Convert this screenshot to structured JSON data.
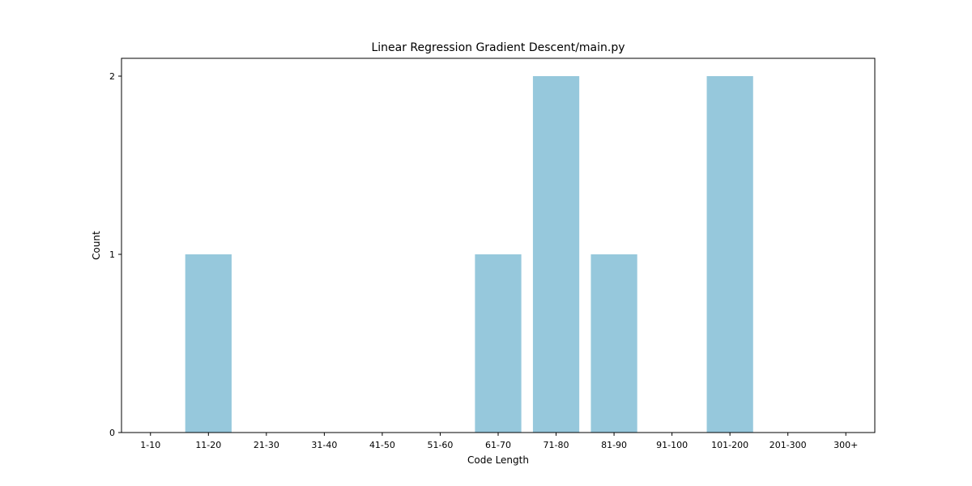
{
  "chart_data": {
    "type": "bar",
    "title": "Linear Regression Gradient Descent/main.py",
    "xlabel": "Code Length",
    "ylabel": "Count",
    "categories": [
      "1-10",
      "11-20",
      "21-30",
      "31-40",
      "41-50",
      "51-60",
      "61-70",
      "71-80",
      "81-90",
      "91-100",
      "101-200",
      "201-300",
      "300+"
    ],
    "values": [
      0,
      1,
      0,
      0,
      0,
      0,
      1,
      2,
      1,
      0,
      2,
      0,
      0
    ],
    "yticks": [
      "0",
      "1",
      "2"
    ],
    "ylim": [
      0,
      2.1
    ],
    "grid": false,
    "bar_color": "#96c8dc"
  }
}
